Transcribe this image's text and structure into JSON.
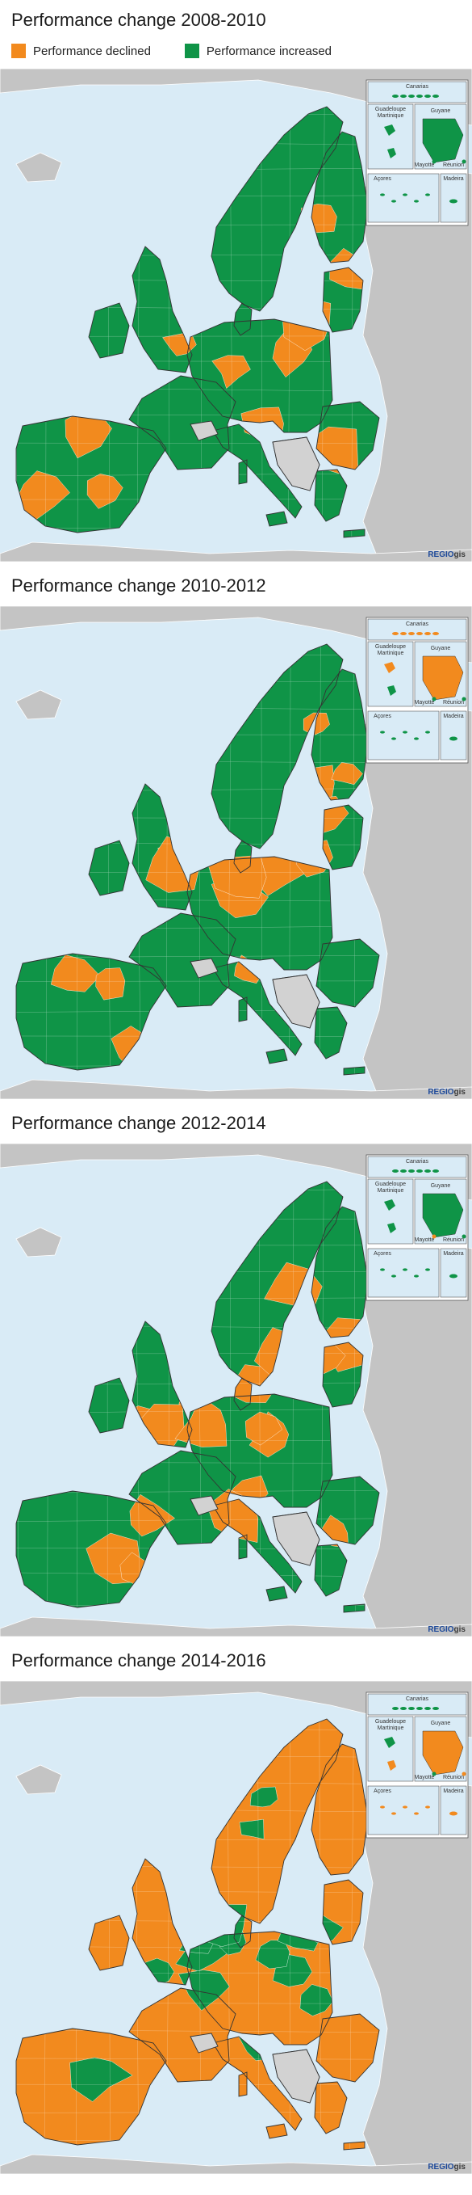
{
  "colors": {
    "declined": "#f28a1e",
    "increased": "#0f9447",
    "nodata": "#d2d2d2",
    "nonEU": "#c4c4c4",
    "sea": "#d9ebf6",
    "border": "#333333"
  },
  "legend": {
    "declined": "Performance declined",
    "increased": "Performance increased"
  },
  "inset_labels": {
    "canarias": "Canarias",
    "guadeloupe": "Guadeloupe",
    "martinique": "Martinique",
    "guyane": "Guyane",
    "mayotte": "Mayotte",
    "reunion": "Réunion",
    "acores": "Açores",
    "madeira": "Madeira"
  },
  "credit": {
    "brand_a": "REGIO",
    "brand_b": "gis"
  },
  "maps": [
    {
      "title": "Performance change 2008-2010",
      "dominant": "increased",
      "patches": [
        [
          0.82,
          0.38,
          "declined"
        ],
        [
          0.62,
          0.57,
          "declined"
        ],
        [
          0.38,
          0.56,
          "declined"
        ],
        [
          0.68,
          0.3,
          "declined"
        ],
        [
          0.74,
          0.41,
          "declined"
        ],
        [
          0.22,
          0.85,
          "declined"
        ],
        [
          0.66,
          0.52,
          "declined"
        ],
        [
          0.18,
          0.73,
          "declined"
        ],
        [
          0.09,
          0.86,
          "declined"
        ],
        [
          0.48,
          0.9,
          "declined"
        ],
        [
          0.71,
          0.78,
          "declined"
        ],
        [
          0.49,
          0.61,
          "declined"
        ],
        [
          0.56,
          0.72,
          "declined"
        ]
      ],
      "insets": {
        "guadeloupe": "increased",
        "martinique": "increased",
        "guyane": "increased",
        "mayotte": "increased",
        "reunion": "increased"
      }
    },
    {
      "title": "Performance change 2010-2012",
      "dominant": "increased",
      "patches": [
        [
          0.52,
          0.74,
          "declined"
        ],
        [
          0.38,
          0.51,
          "declined"
        ],
        [
          0.29,
          0.9,
          "declined"
        ],
        [
          0.51,
          0.59,
          "declined"
        ],
        [
          0.58,
          0.54,
          "declined"
        ],
        [
          0.15,
          0.75,
          "declined"
        ],
        [
          0.81,
          0.49,
          "declined"
        ],
        [
          0.67,
          0.36,
          "declined"
        ],
        [
          0.68,
          0.42,
          "declined"
        ],
        [
          0.37,
          0.53,
          "declined"
        ],
        [
          0.51,
          0.55,
          "declined"
        ],
        [
          0.67,
          0.24,
          "declined"
        ],
        [
          0.66,
          0.51,
          "declined"
        ],
        [
          0.8,
          0.53,
          "declined"
        ],
        [
          0.23,
          0.76,
          "declined"
        ],
        [
          0.73,
          0.34,
          "declined"
        ],
        [
          0.62,
          0.79,
          "declined"
        ]
      ],
      "insets": {
        "guadeloupe": "declined",
        "martinique": "increased",
        "guyane": "declined",
        "mayotte": "increased",
        "reunion": "increased"
      }
    },
    {
      "title": "Performance change 2012-2014",
      "dominant": "increased",
      "patches": [
        [
          0.52,
          0.71,
          "declined"
        ],
        [
          0.58,
          0.59,
          "declined"
        ],
        [
          0.31,
          0.76,
          "declined"
        ],
        [
          0.73,
          0.41,
          "declined"
        ],
        [
          0.56,
          0.58,
          "declined"
        ],
        [
          0.25,
          0.85,
          "declined"
        ],
        [
          0.69,
          0.43,
          "declined"
        ],
        [
          0.3,
          0.56,
          "declined"
        ],
        [
          0.53,
          0.49,
          "declined"
        ],
        [
          0.62,
          0.29,
          "declined"
        ],
        [
          0.4,
          0.52,
          "declined"
        ],
        [
          0.34,
          0.58,
          "declined"
        ],
        [
          0.62,
          0.44,
          "declined"
        ],
        [
          0.59,
          0.42,
          "declined"
        ],
        [
          0.29,
          0.87,
          "declined"
        ],
        [
          0.44,
          0.57,
          "declined"
        ],
        [
          0.5,
          0.76,
          "declined"
        ],
        [
          0.71,
          0.79,
          "declined"
        ]
      ],
      "insets": {
        "guadeloupe": "increased",
        "martinique": "increased",
        "guyane": "increased",
        "mayotte": "declined",
        "reunion": "increased"
      }
    },
    {
      "title": "Performance change 2014-2016",
      "dominant": "declined",
      "patches": [
        [
          0.43,
          0.55,
          "increased"
        ],
        [
          0.62,
          0.59,
          "increased"
        ],
        [
          0.55,
          0.74,
          "increased"
        ],
        [
          0.67,
          0.65,
          "increased"
        ],
        [
          0.44,
          0.62,
          "increased"
        ],
        [
          0.49,
          0.53,
          "increased"
        ],
        [
          0.54,
          0.3,
          "increased"
        ],
        [
          0.58,
          0.55,
          "increased"
        ],
        [
          0.34,
          0.59,
          "increased"
        ],
        [
          0.21,
          0.8,
          "increased"
        ],
        [
          0.42,
          0.53,
          "increased"
        ],
        [
          0.48,
          0.5,
          "increased"
        ],
        [
          0.63,
          0.51,
          "increased"
        ],
        [
          0.56,
          0.24,
          "increased"
        ],
        [
          0.68,
          0.5,
          "increased"
        ]
      ],
      "insets": {
        "guadeloupe": "increased",
        "martinique": "declined",
        "guyane": "declined",
        "mayotte": "increased",
        "reunion": "declined"
      }
    }
  ]
}
